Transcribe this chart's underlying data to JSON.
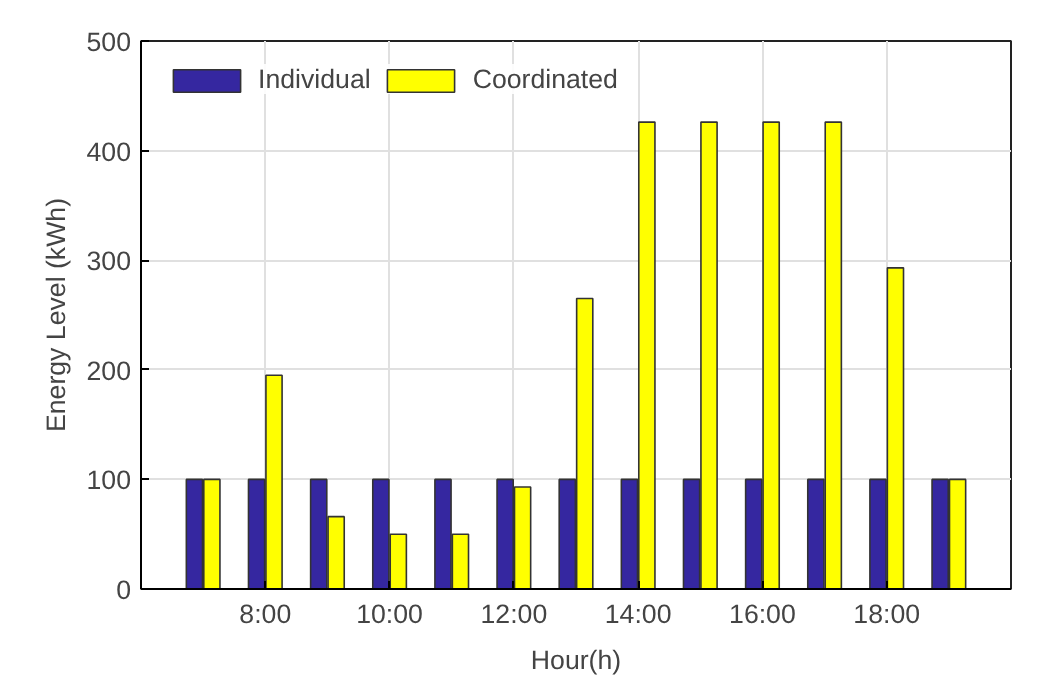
{
  "chart_data": {
    "type": "bar",
    "xlabel": "Hour(h)",
    "ylabel": "Energy Level (kWh)",
    "x": [
      7,
      8,
      9,
      10,
      11,
      12,
      13,
      14,
      15,
      16,
      17,
      18,
      19
    ],
    "series": [
      {
        "name": "Individual",
        "color": "#3527a0",
        "values": [
          100,
          100,
          100,
          100,
          100,
          100,
          100,
          100,
          100,
          100,
          100,
          100,
          100
        ]
      },
      {
        "name": "Coordinated",
        "color": "#ffff00",
        "values": [
          100,
          195,
          66,
          50,
          50,
          93,
          265,
          426,
          426,
          426,
          426,
          293,
          100
        ]
      }
    ],
    "xlim": [
      6,
      20
    ],
    "xticks": [
      {
        "value": 8,
        "label": "8:00"
      },
      {
        "value": 10,
        "label": "10:00"
      },
      {
        "value": 12,
        "label": "12:00"
      },
      {
        "value": 14,
        "label": "14:00"
      },
      {
        "value": 16,
        "label": "16:00"
      },
      {
        "value": 18,
        "label": "18:00"
      }
    ],
    "ylim": [
      0,
      500
    ],
    "yticks": [
      0,
      100,
      200,
      300,
      400,
      500
    ],
    "grid": true,
    "legend": "top left"
  }
}
